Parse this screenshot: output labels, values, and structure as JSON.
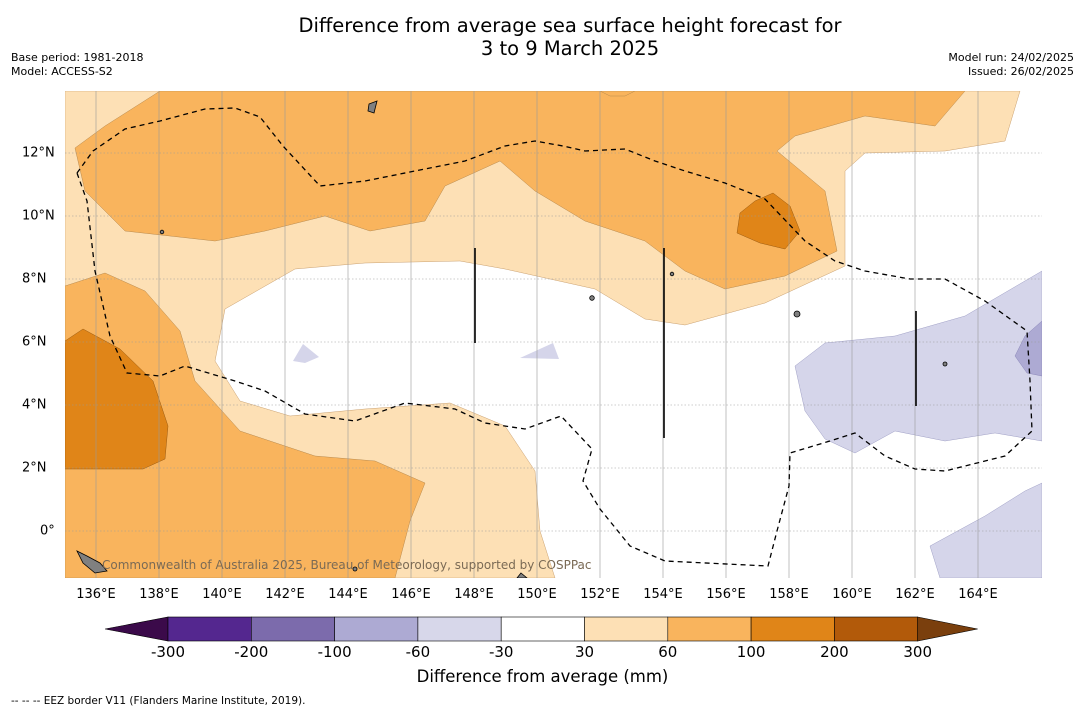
{
  "title": {
    "line1": "Difference from average sea surface height forecast for",
    "line2": "3 to 9 March 2025"
  },
  "meta": {
    "base_period": "Base period: 1981-2018",
    "model": "Model: ACCESS-S2",
    "model_run": "Model run: 24/02/2025",
    "issued": "Issued: 26/02/2025"
  },
  "map": {
    "longitude_labels": [
      "136°E",
      "138°E",
      "140°E",
      "142°E",
      "144°E",
      "146°E",
      "148°E",
      "150°E",
      "152°E",
      "154°E",
      "156°E",
      "158°E",
      "160°E",
      "162°E",
      "164°E"
    ],
    "latitude_labels": [
      "12°N",
      "10°N",
      "8°N",
      "6°N",
      "4°N",
      "2°N",
      "0°"
    ],
    "credit": "Commonwealth of Australia 2025, Bureau of Meteorology, supported by COSPPac",
    "colors": {
      "orange_dark": "#e08518",
      "orange_mid": "#f9b45d",
      "orange_light": "#fde0b5",
      "blue_light": "#d5d5ea",
      "blue_mid": "#adaad3",
      "land": "#808080"
    }
  },
  "colorbar": {
    "ticks": [
      "-300",
      "-200",
      "-100",
      "-60",
      "-30",
      "30",
      "60",
      "100",
      "200",
      "300"
    ],
    "under_color": "#3b0a4a",
    "over_color": "#7a3f0d",
    "segments": [
      "#54278f",
      "#7c6bac",
      "#adaad3",
      "#d7d7ea",
      "#ffffff",
      "#fde0b5",
      "#f9b45d",
      "#e08518",
      "#b25a0a"
    ],
    "label": "Difference from average (mm)"
  },
  "footnote": "--  --  -- EEZ border V11 (Flanders Marine Institute, 2019)."
}
